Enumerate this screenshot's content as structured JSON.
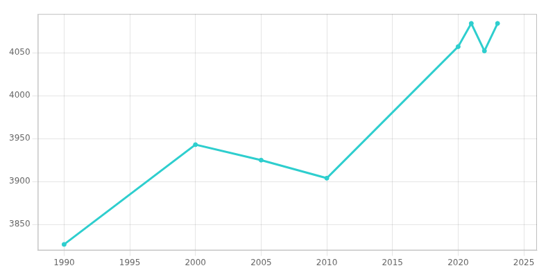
{
  "chart_data": {
    "type": "line",
    "x": [
      1990,
      2000,
      2005,
      2010,
      2020,
      2021,
      2022,
      2023
    ],
    "values": [
      3827,
      3943,
      3925,
      3904,
      4057,
      4084,
      4052,
      4084
    ],
    "color": "#2ECECE",
    "marker": "o",
    "xlim": [
      1988,
      2026
    ],
    "ylim": [
      3820,
      4095
    ],
    "xticks": [
      1990,
      1995,
      2000,
      2005,
      2010,
      2015,
      2020,
      2025
    ],
    "yticks": [
      3850,
      3900,
      3950,
      4000,
      4050
    ],
    "grid": true
  }
}
